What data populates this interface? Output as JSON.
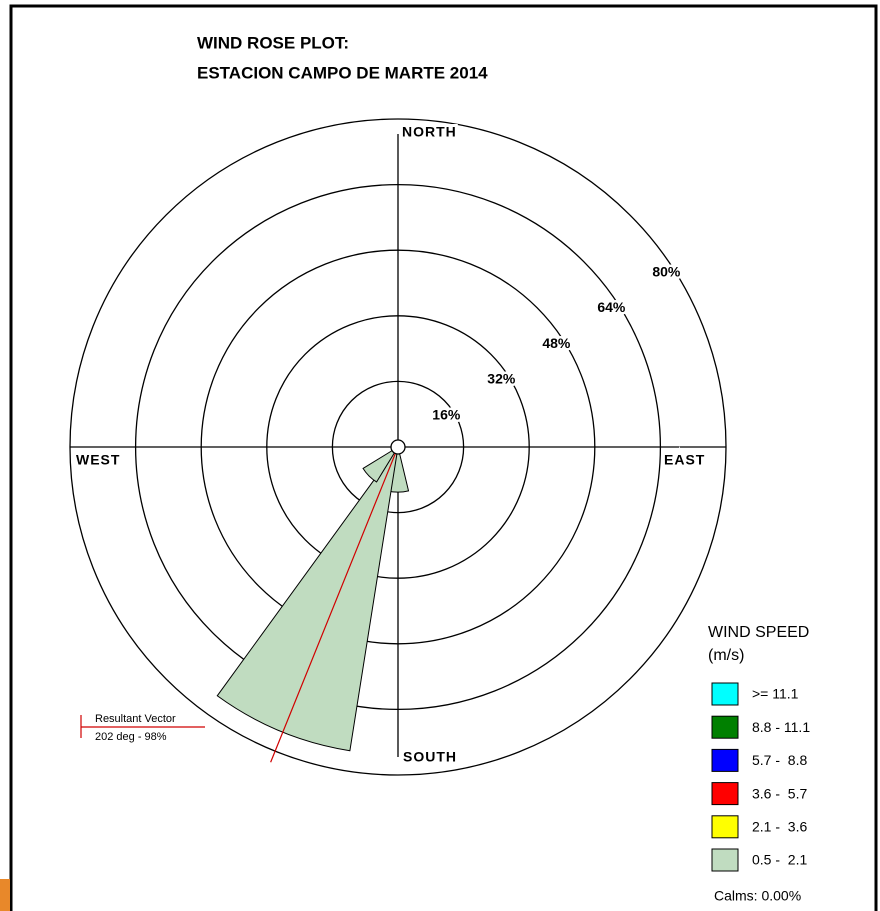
{
  "chart_data": {
    "type": "windrose",
    "title": [
      "WIND ROSE PLOT:",
      "ESTACION CAMPO DE MARTE 2014"
    ],
    "x": [
      0,
      22.5,
      45,
      67.5,
      90,
      112.5,
      135,
      157.5,
      180,
      202.5,
      225,
      247.5,
      270,
      292.5,
      315,
      337.5
    ],
    "series": [
      {
        "name": "0.5 -  2.1",
        "color": "#c0dcc0",
        "values": [
          0,
          0,
          0,
          0,
          0,
          0,
          0,
          0,
          11,
          75,
          10,
          0,
          0,
          0,
          0,
          0
        ]
      },
      {
        "name": "2.1 -  3.6",
        "color": "#ffff00",
        "values": [
          0,
          0,
          0,
          0,
          0,
          0,
          0,
          0,
          0,
          0,
          0,
          0,
          0,
          0,
          0,
          0
        ]
      },
      {
        "name": "3.6 -  5.7",
        "color": "#ff0000",
        "values": [
          0,
          0,
          0,
          0,
          0,
          0,
          0,
          0,
          0,
          0,
          0,
          0,
          0,
          0,
          0,
          0
        ]
      },
      {
        "name": "5.7 -  8.8",
        "color": "#0000ff",
        "values": [
          0,
          0,
          0,
          0,
          0,
          0,
          0,
          0,
          0,
          0,
          0,
          0,
          0,
          0,
          0,
          0
        ]
      },
      {
        "name": "8.8 - 11.1",
        "color": "#008000",
        "values": [
          0,
          0,
          0,
          0,
          0,
          0,
          0,
          0,
          0,
          0,
          0,
          0,
          0,
          0,
          0,
          0
        ]
      },
      {
        "name": ">= 11.1",
        "color": "#00ffff",
        "values": [
          0,
          0,
          0,
          0,
          0,
          0,
          0,
          0,
          0,
          0,
          0,
          0,
          0,
          0,
          0,
          0
        ]
      }
    ],
    "rlim": [
      0,
      80
    ],
    "rticks": [
      {
        "value": 16,
        "label": "16%"
      },
      {
        "value": 32,
        "label": "32%"
      },
      {
        "value": 48,
        "label": "48%"
      },
      {
        "value": 64,
        "label": "64%"
      },
      {
        "value": 80,
        "label": "80%"
      }
    ],
    "compass": [
      "NORTH",
      "EAST",
      "SOUTH",
      "WEST"
    ],
    "legend_title": [
      "WIND SPEED",
      "(m/s)"
    ],
    "calms": "Calms: 0.00%",
    "resultant": {
      "name": "Resultant Vector",
      "direction": 202,
      "label": "202 deg - 98%"
    }
  }
}
